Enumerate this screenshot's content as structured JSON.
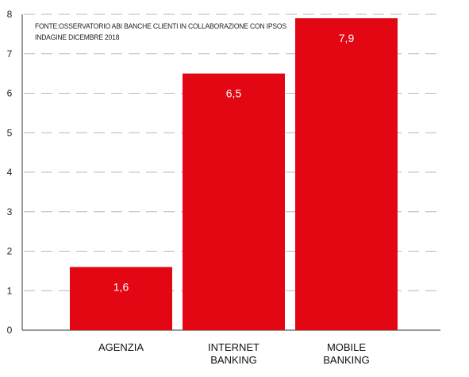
{
  "chart_data": {
    "type": "bar",
    "title": "",
    "source_lines": [
      "FONTE:OSSERVATORIO ABI BANCHE CLIENTI IN COLLABORAZIONE CON IPSOS",
      "INDAGINE DICEMBRE 2018"
    ],
    "categories": [
      [
        "AGENZIA"
      ],
      [
        "INTERNET",
        "BANKING"
      ],
      [
        "MOBILE",
        "BANKING"
      ]
    ],
    "values": [
      1.6,
      6.5,
      7.9
    ],
    "value_labels": [
      "1,6",
      "6,5",
      "7,9"
    ],
    "ylim": [
      0,
      8
    ],
    "yticks": [
      "0",
      "1",
      "2",
      "3",
      "4",
      "5",
      "6",
      "7",
      "8"
    ],
    "xlabel": "",
    "ylabel": "",
    "grid": "dashed horizontal",
    "legend": "none",
    "bar_color": "#e30613",
    "label_color": "#ffffff"
  }
}
